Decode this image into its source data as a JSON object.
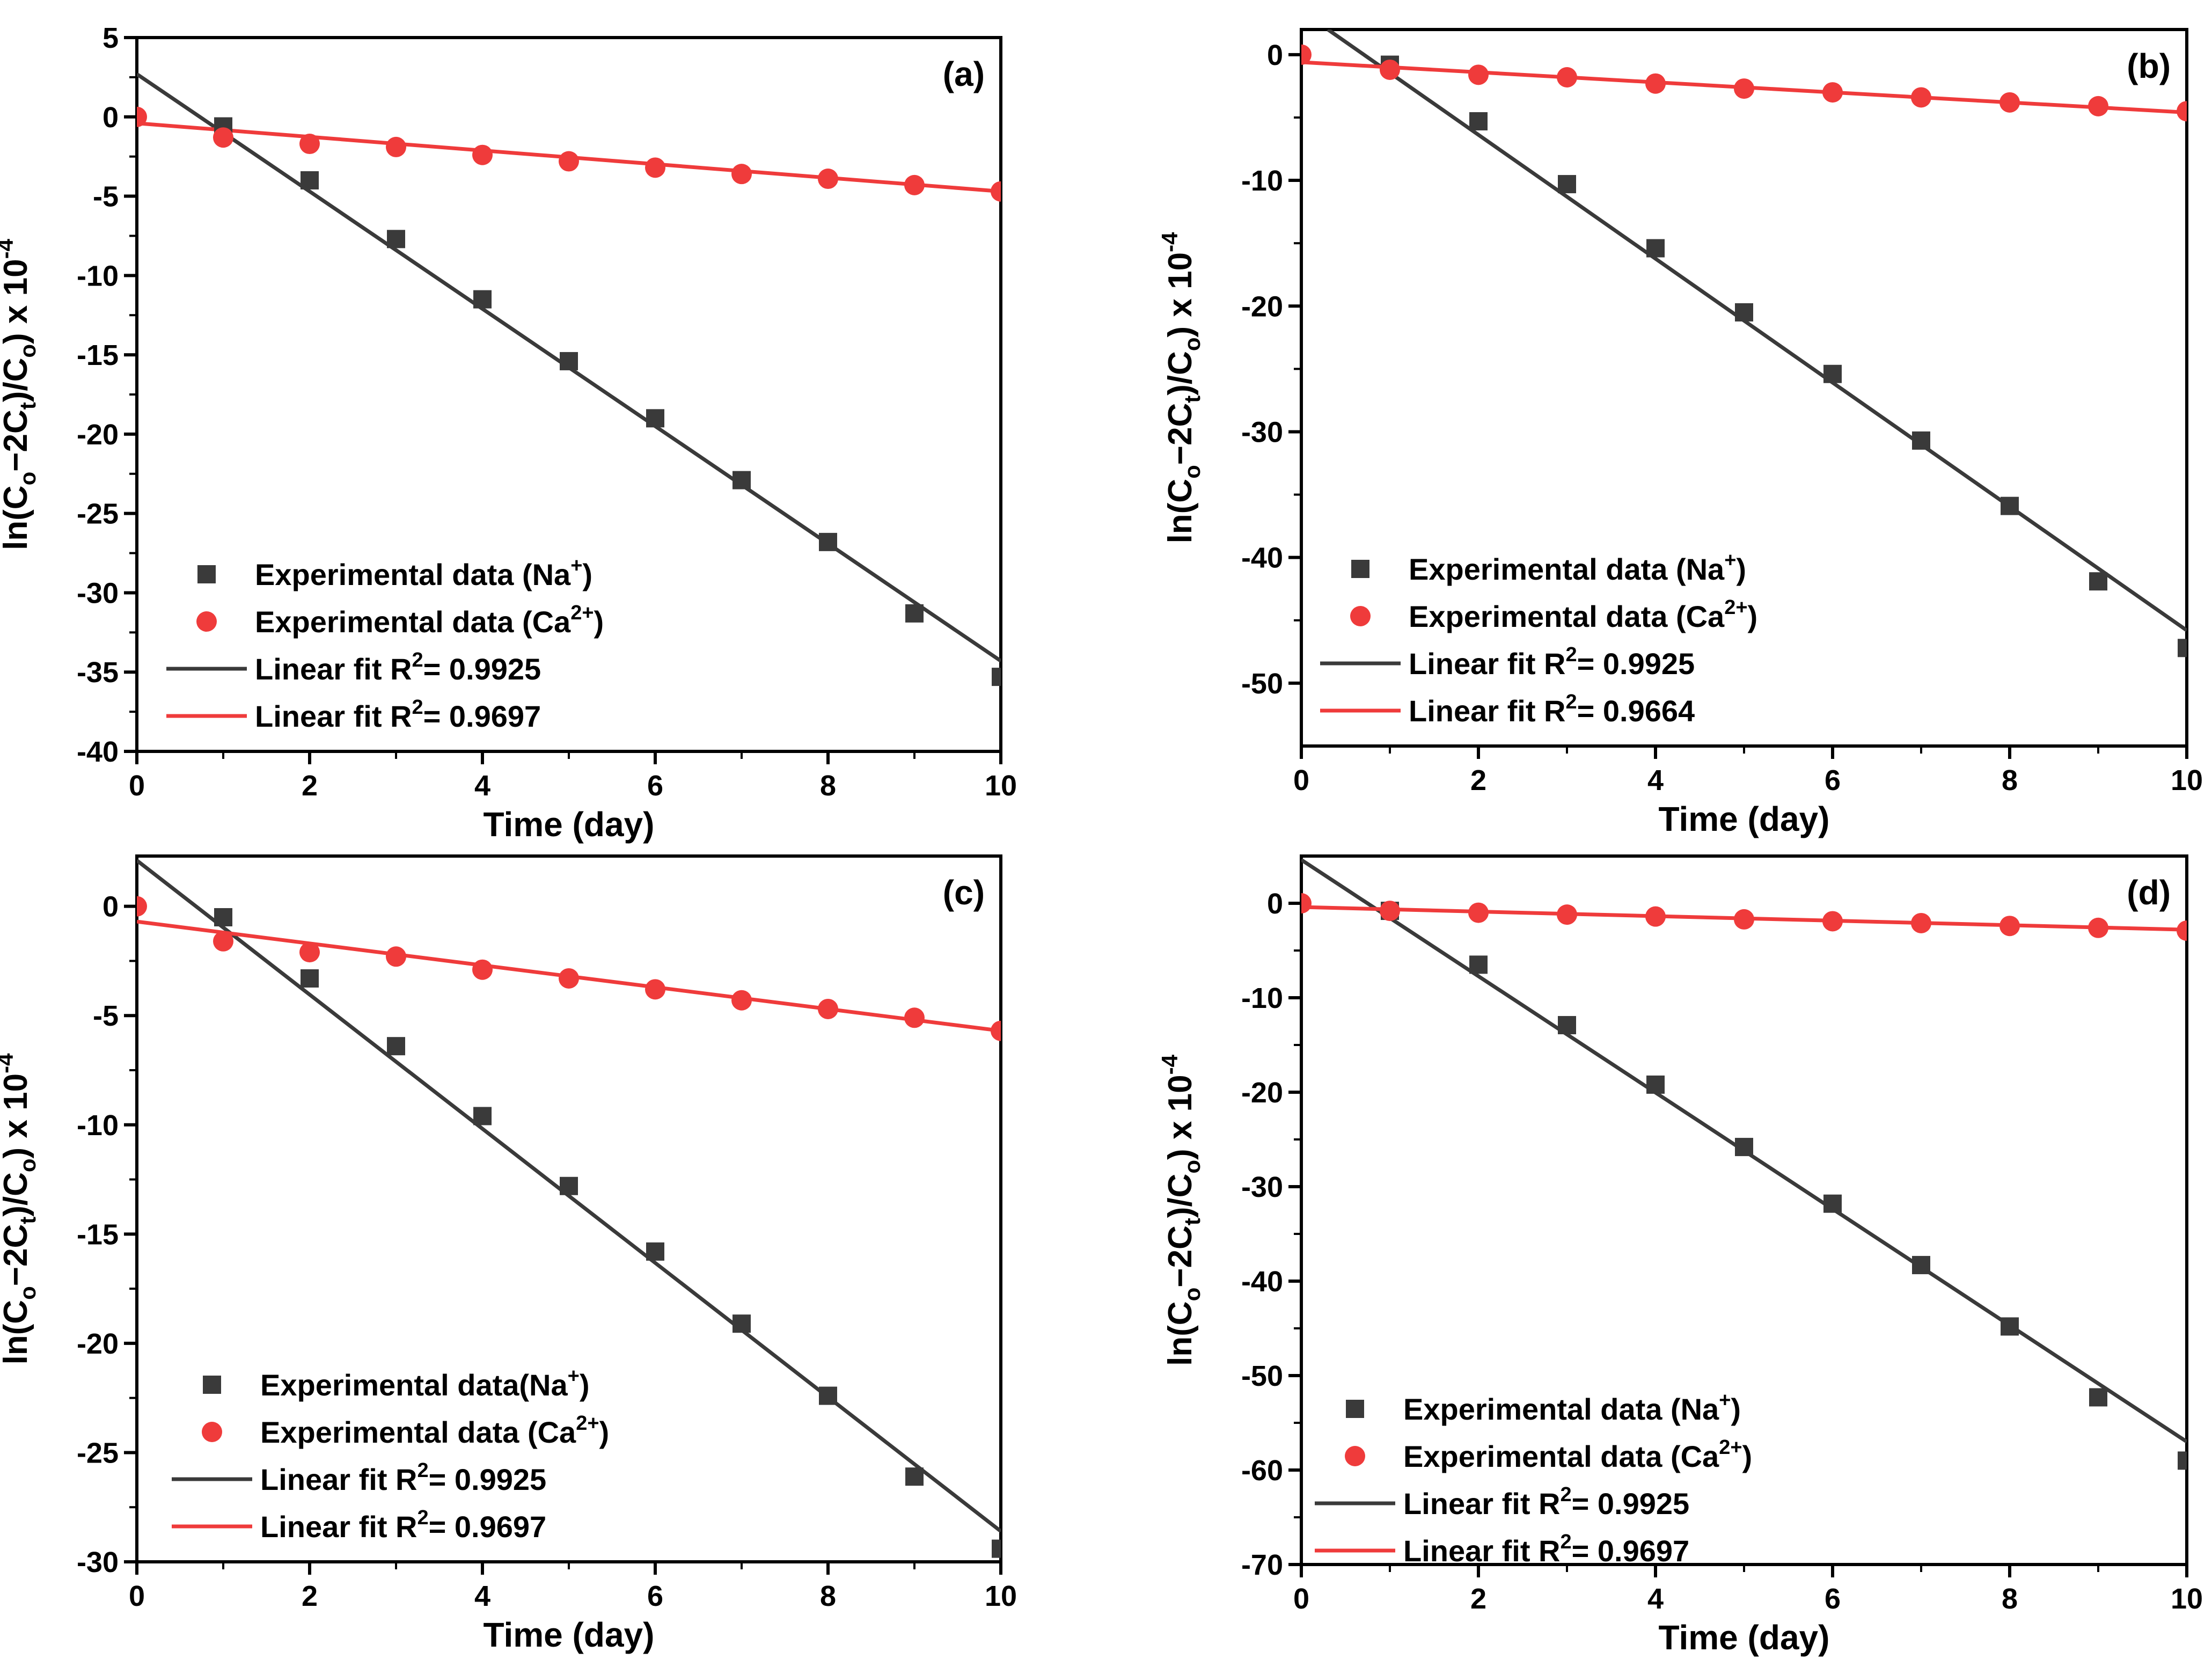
{
  "figure": {
    "xlabel": "Time (day)",
    "ylabel": {
      "prefix": "ln(C",
      "sub1": "o",
      "middle": "−2C",
      "sub2": "t",
      "middle2": ")/C",
      "sub3": "o",
      "suffix": ") x 10",
      "sup": "-4"
    }
  },
  "colors": {
    "na": "#3a3a3a",
    "ca": "#ef3b3b",
    "fit_na": "#3a3a3a",
    "fit_ca": "#ef3b3b"
  },
  "chart_data": [
    {
      "panel": "(a)",
      "type": "scatter",
      "xlabel": "Time (day)",
      "xlim": [
        0,
        10
      ],
      "ylim": [
        -40,
        5
      ],
      "xticks": [
        0,
        2,
        4,
        6,
        8,
        10
      ],
      "yticks": [
        5,
        0,
        -5,
        -10,
        -15,
        -20,
        -25,
        -30,
        -35,
        -40
      ],
      "legend": {
        "position": "bottom-left"
      },
      "series": [
        {
          "name": "Experimental data (Na+)",
          "label_main": "Experimental data (Na",
          "label_sup": "+",
          "label_end": ")",
          "kind": "square",
          "color": "#3a3a3a",
          "x": [
            1,
            2,
            3,
            4,
            5,
            6,
            7,
            8,
            9,
            10
          ],
          "y": [
            -0.6,
            -4.0,
            -7.7,
            -11.5,
            -15.4,
            -19.0,
            -22.9,
            -26.8,
            -31.3,
            -35.3
          ]
        },
        {
          "name": "Experimental data (Ca2+)",
          "label_main": "Experimental data (Ca",
          "label_sup": "2+",
          "label_end": ")",
          "kind": "circle",
          "color": "#ef3b3b",
          "x": [
            0,
            1,
            2,
            3,
            4,
            5,
            6,
            7,
            8,
            9,
            10
          ],
          "y": [
            0,
            -1.3,
            -1.7,
            -1.9,
            -2.4,
            -2.8,
            -3.2,
            -3.6,
            -3.9,
            -4.3,
            -4.7
          ]
        },
        {
          "name": "Linear fit R2= 0.9925",
          "label_main": "Linear fit R",
          "label_sup": "2",
          "label_end": "= 0.9925",
          "kind": "line",
          "color": "#3a3a3a",
          "x": [
            0,
            10
          ],
          "y": [
            2.7,
            -34.3
          ]
        },
        {
          "name": "Linear fit R2= 0.9697",
          "label_main": "Linear fit R",
          "label_sup": "2",
          "label_end": "= 0.9697",
          "kind": "line",
          "color": "#ef3b3b",
          "x": [
            0,
            10
          ],
          "y": [
            -0.4,
            -4.7
          ]
        }
      ]
    },
    {
      "panel": "(b)",
      "type": "scatter",
      "xlabel": "Time (day)",
      "xlim": [
        0,
        10
      ],
      "ylim": [
        -55,
        2
      ],
      "xticks": [
        0,
        2,
        4,
        6,
        8,
        10
      ],
      "yticks": [
        0,
        -10,
        -20,
        -30,
        -40,
        -50
      ],
      "legend": {
        "position": "bottom-left"
      },
      "series": [
        {
          "name": "Experimental data (Na+)",
          "label_main": "Experimental data (Na",
          "label_sup": "+",
          "label_end": ")",
          "kind": "square",
          "color": "#3a3a3a",
          "x": [
            1,
            2,
            3,
            4,
            5,
            6,
            7,
            8,
            9,
            10
          ],
          "y": [
            -0.8,
            -5.3,
            -10.3,
            -15.4,
            -20.5,
            -25.4,
            -30.7,
            -35.9,
            -41.9,
            -47.2
          ]
        },
        {
          "name": "Experimental data (Ca2+)",
          "label_main": "Experimental data (Ca",
          "label_sup": "2+",
          "label_end": ")",
          "kind": "circle",
          "color": "#ef3b3b",
          "x": [
            0,
            1,
            2,
            3,
            4,
            5,
            6,
            7,
            8,
            9,
            10
          ],
          "y": [
            0,
            -1.2,
            -1.6,
            -1.8,
            -2.3,
            -2.7,
            -3.0,
            -3.4,
            -3.8,
            -4.1,
            -4.5
          ]
        },
        {
          "name": "Linear fit R2= 0.9925",
          "label_main": "Linear fit R",
          "label_sup": "2",
          "label_end": "= 0.9925",
          "kind": "line",
          "color": "#3a3a3a",
          "x": [
            0.3,
            10
          ],
          "y": [
            2.0,
            -45.8
          ]
        },
        {
          "name": "Linear fit R2= 0.9664",
          "label_main": "Linear fit R",
          "label_sup": "2",
          "label_end": "= 0.9664",
          "kind": "line",
          "color": "#ef3b3b",
          "x": [
            0,
            10
          ],
          "y": [
            -0.6,
            -4.6
          ]
        }
      ]
    },
    {
      "panel": "(c)",
      "type": "scatter",
      "xlabel": "Time (day)",
      "xlim": [
        0,
        10
      ],
      "ylim": [
        -30,
        2.3
      ],
      "xticks": [
        0,
        2,
        4,
        6,
        8,
        10
      ],
      "yticks": [
        0,
        -5,
        -10,
        -15,
        -20,
        -25,
        -30
      ],
      "legend": {
        "position": "bottom-left"
      },
      "series": [
        {
          "name": "Experimental data(Na+)",
          "label_main": "Experimental data(Na",
          "label_sup": "+",
          "label_end": ")",
          "kind": "square",
          "color": "#3a3a3a",
          "x": [
            1,
            2,
            3,
            4,
            5,
            6,
            7,
            8,
            9,
            10
          ],
          "y": [
            -0.5,
            -3.3,
            -6.4,
            -9.6,
            -12.8,
            -15.8,
            -19.1,
            -22.4,
            -26.1,
            -29.4
          ]
        },
        {
          "name": "Experimental data (Ca2+)",
          "label_main": "Experimental data (Ca",
          "label_sup": "2+",
          "label_end": ")",
          "kind": "circle",
          "color": "#ef3b3b",
          "x": [
            0,
            1,
            2,
            3,
            4,
            5,
            6,
            7,
            8,
            9,
            10
          ],
          "y": [
            0,
            -1.6,
            -2.1,
            -2.3,
            -2.9,
            -3.3,
            -3.8,
            -4.3,
            -4.7,
            -5.1,
            -5.7
          ]
        },
        {
          "name": "Linear fit R2= 0.9925",
          "label_main": "Linear fit R",
          "label_sup": "2",
          "label_end": "= 0.9925",
          "kind": "line",
          "color": "#3a3a3a",
          "x": [
            0,
            10
          ],
          "y": [
            2.1,
            -28.6
          ]
        },
        {
          "name": "Linear fit R2= 0.9697",
          "label_main": "Linear fit R",
          "label_sup": "2",
          "label_end": "= 0.9697",
          "kind": "line",
          "color": "#ef3b3b",
          "x": [
            0,
            10
          ],
          "y": [
            -0.7,
            -5.7
          ]
        }
      ]
    },
    {
      "panel": "(d)",
      "type": "scatter",
      "xlabel": "Time (day)",
      "xlim": [
        0,
        10
      ],
      "ylim": [
        -70,
        5
      ],
      "xticks": [
        0,
        2,
        4,
        6,
        8,
        10
      ],
      "yticks": [
        0,
        -10,
        -20,
        -30,
        -40,
        -50,
        -60,
        -70
      ],
      "legend": {
        "position": "bottom-left"
      },
      "series": [
        {
          "name": "Experimental data (Na+)",
          "label_main": "Experimental data (Na",
          "label_sup": "+",
          "label_end": ")",
          "kind": "square",
          "color": "#3a3a3a",
          "x": [
            1,
            2,
            3,
            4,
            5,
            6,
            7,
            8,
            9,
            10
          ],
          "y": [
            -0.8,
            -6.5,
            -12.9,
            -19.2,
            -25.8,
            -31.8,
            -38.3,
            -44.8,
            -52.3,
            -59.0
          ]
        },
        {
          "name": "Experimental data (Ca2+)",
          "label_main": "Experimental data (Ca",
          "label_sup": "2+",
          "label_end": ")",
          "kind": "circle",
          "color": "#ef3b3b",
          "x": [
            0,
            1,
            2,
            3,
            4,
            5,
            6,
            7,
            8,
            9,
            10
          ],
          "y": [
            0,
            -0.8,
            -1.0,
            -1.2,
            -1.4,
            -1.7,
            -1.9,
            -2.1,
            -2.4,
            -2.6,
            -2.9
          ]
        },
        {
          "name": "Linear fit R2= 0.9925",
          "label_main": "Linear fit R",
          "label_sup": "2",
          "label_end": "= 0.9925",
          "kind": "line",
          "color": "#3a3a3a",
          "x": [
            0,
            10
          ],
          "y": [
            4.6,
            -57.0
          ]
        },
        {
          "name": "Linear fit R2= 0.9697",
          "label_main": "Linear fit R",
          "label_sup": "2",
          "label_end": "= 0.9697",
          "kind": "line",
          "color": "#ef3b3b",
          "x": [
            0,
            10
          ],
          "y": [
            -0.4,
            -2.8
          ]
        }
      ]
    }
  ]
}
